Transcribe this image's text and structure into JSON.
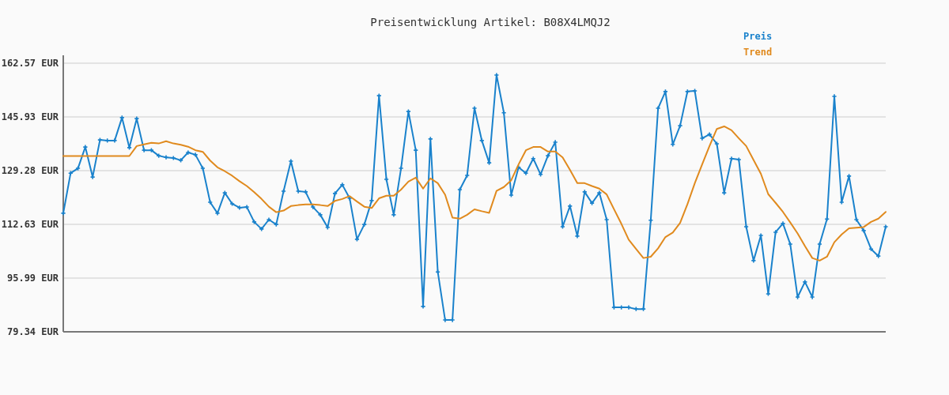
{
  "chart_data": {
    "type": "line",
    "title": "Preisentwicklung Artikel: B08X4LMQJ2",
    "categories": [
      null,
      null,
      null,
      null,
      null,
      null,
      null,
      null,
      null,
      null,
      null,
      null,
      null,
      null,
      null,
      null,
      null,
      null,
      null,
      null,
      null,
      null,
      null,
      null,
      null,
      null,
      null,
      null,
      null,
      null,
      null,
      null,
      null,
      null,
      null,
      null,
      null,
      null,
      null,
      null,
      null,
      null,
      null,
      null,
      null,
      null,
      null,
      null,
      null,
      null,
      null,
      null,
      null,
      null,
      null,
      null,
      null,
      null,
      null,
      null,
      null,
      null,
      null,
      null,
      null,
      null,
      null,
      null,
      null,
      null,
      null,
      null,
      null,
      null,
      null,
      null,
      null,
      null,
      null,
      null,
      null,
      null,
      null,
      null,
      null,
      null,
      null,
      null,
      null,
      null,
      null,
      null,
      null,
      null,
      null,
      null,
      null,
      null,
      null,
      null,
      null,
      null,
      null,
      null,
      null,
      null,
      null,
      null,
      null,
      null,
      null,
      null,
      null
    ],
    "series": [
      {
        "name": "Preis",
        "color": "#1a82cc",
        "marker": "cross",
        "values": [
          116.1,
          128.5,
          130.0,
          136.6,
          127.3,
          138.8,
          138.6,
          138.6,
          145.7,
          136.4,
          145.4,
          135.6,
          135.6,
          133.9,
          133.4,
          133.2,
          132.5,
          134.9,
          134.2,
          130.0,
          119.5,
          116.1,
          122.4,
          119.0,
          117.8,
          118.0,
          113.4,
          111.2,
          114.1,
          112.6,
          122.9,
          132.2,
          122.9,
          122.7,
          118.0,
          115.6,
          111.7,
          122.2,
          124.9,
          120.7,
          108.0,
          112.6,
          120.0,
          152.5,
          126.6,
          115.6,
          130.0,
          147.6,
          135.6,
          87.2,
          139.1,
          97.9,
          83.0,
          83.0,
          123.4,
          127.8,
          148.6,
          138.6,
          131.7,
          158.9,
          147.2,
          121.7,
          130.3,
          128.5,
          133.0,
          128.1,
          133.9,
          138.1,
          111.9,
          118.3,
          109.0,
          122.7,
          119.2,
          122.4,
          114.1,
          86.9,
          86.9,
          86.9,
          86.4,
          86.4,
          113.9,
          148.6,
          153.8,
          137.4,
          143.2,
          153.8,
          154.0,
          139.3,
          140.5,
          137.6,
          122.4,
          133.0,
          132.7,
          111.9,
          101.4,
          109.2,
          91.1,
          110.2,
          112.9,
          106.5,
          90.1,
          94.8,
          90.1,
          106.5,
          114.3,
          152.3,
          119.5,
          127.6,
          114.1,
          110.7,
          105.0,
          102.8,
          111.9
        ]
      },
      {
        "name": "Trend",
        "color": "#e08a1e",
        "marker": "none",
        "values": [
          133.8,
          133.8,
          133.8,
          133.8,
          133.8,
          133.8,
          133.8,
          133.8,
          133.8,
          133.8,
          136.9,
          137.4,
          137.9,
          137.7,
          138.4,
          137.7,
          137.3,
          136.7,
          135.6,
          135.1,
          132.4,
          130.3,
          129.1,
          127.7,
          126.0,
          124.5,
          122.6,
          120.5,
          118.1,
          116.4,
          116.9,
          118.3,
          118.6,
          118.8,
          118.8,
          118.6,
          118.3,
          119.9,
          120.5,
          121.4,
          119.7,
          118.1,
          117.7,
          120.7,
          121.5,
          121.5,
          123.4,
          125.9,
          127.1,
          123.7,
          126.9,
          125.4,
          121.8,
          114.7,
          114.4,
          115.6,
          117.3,
          116.7,
          116.2,
          123.0,
          124.2,
          126.3,
          131.2,
          135.6,
          136.6,
          136.6,
          135.2,
          135.2,
          133.4,
          129.5,
          125.4,
          125.4,
          124.5,
          123.7,
          121.9,
          117.3,
          112.8,
          107.9,
          105.0,
          102.2,
          102.6,
          105.2,
          108.7,
          110.1,
          113.1,
          118.9,
          125.4,
          131.2,
          136.9,
          142.2,
          143.0,
          141.8,
          139.3,
          136.9,
          132.6,
          128.3,
          122.0,
          119.3,
          116.5,
          113.2,
          109.8,
          105.9,
          102.2,
          101.4,
          102.6,
          107.1,
          109.5,
          111.4,
          111.6,
          111.8,
          113.4,
          114.4,
          116.5
        ]
      }
    ],
    "ylim": [
      79.34,
      162.57
    ],
    "yticks": [
      {
        "value": 79.34,
        "label": "79.34 EUR"
      },
      {
        "value": 95.99,
        "label": "95.99 EUR"
      },
      {
        "value": 112.63,
        "label": "112.63 EUR"
      },
      {
        "value": 129.28,
        "label": "129.28 EUR"
      },
      {
        "value": 145.93,
        "label": "145.93 EUR"
      },
      {
        "value": 162.57,
        "label": "162.57 EUR"
      }
    ],
    "grid": "y",
    "legend": "top right",
    "line_style": "solid"
  }
}
